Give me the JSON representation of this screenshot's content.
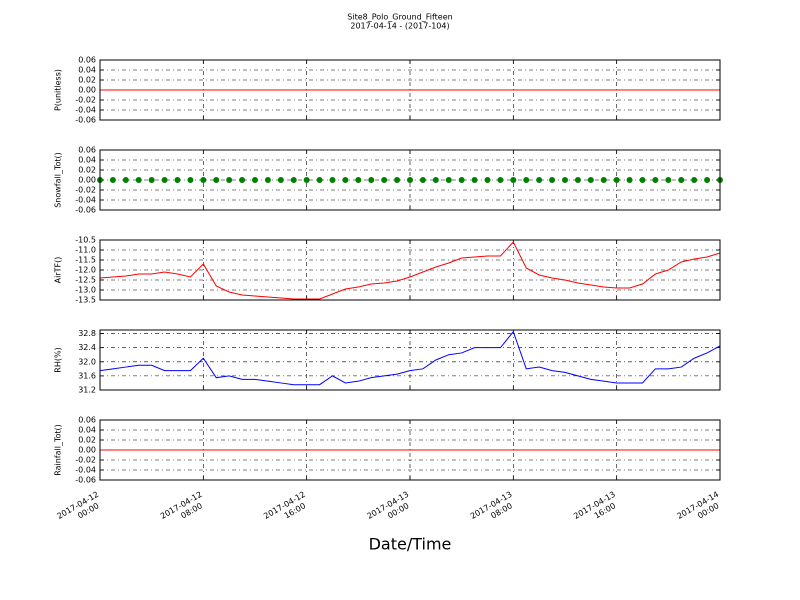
{
  "title": "Site8_Polo_Ground_Fifteen",
  "subtitle": "2017-04-14 - (2017-104)",
  "xlabel": "Date/Time",
  "x": [
    "2017-04-12 00:00",
    "2017-04-12 01:00",
    "2017-04-12 02:00",
    "2017-04-12 03:00",
    "2017-04-12 04:00",
    "2017-04-12 05:00",
    "2017-04-12 06:00",
    "2017-04-12 07:00",
    "2017-04-12 08:00",
    "2017-04-12 09:00",
    "2017-04-12 10:00",
    "2017-04-12 11:00",
    "2017-04-12 12:00",
    "2017-04-12 13:00",
    "2017-04-12 14:00",
    "2017-04-12 15:00",
    "2017-04-12 16:00",
    "2017-04-12 17:00",
    "2017-04-12 18:00",
    "2017-04-12 19:00",
    "2017-04-12 20:00",
    "2017-04-12 21:00",
    "2017-04-12 22:00",
    "2017-04-12 23:00",
    "2017-04-13 00:00",
    "2017-04-13 01:00",
    "2017-04-13 02:00",
    "2017-04-13 03:00",
    "2017-04-13 04:00",
    "2017-04-13 05:00",
    "2017-04-13 06:00",
    "2017-04-13 07:00",
    "2017-04-13 08:00",
    "2017-04-13 09:00",
    "2017-04-13 10:00",
    "2017-04-13 11:00",
    "2017-04-13 12:00",
    "2017-04-13 13:00",
    "2017-04-13 14:00",
    "2017-04-13 15:00",
    "2017-04-13 16:00",
    "2017-04-13 17:00",
    "2017-04-13 18:00",
    "2017-04-13 19:00",
    "2017-04-13 20:00",
    "2017-04-13 21:00",
    "2017-04-13 22:00",
    "2017-04-13 23:00",
    "2017-04-14 00:00"
  ],
  "xlim": [
    "2017-04-12 00:00",
    "2017-04-14 00:00"
  ],
  "xticks": [
    "2017-04-12 00:00",
    "2017-04-12 08:00",
    "2017-04-12 16:00",
    "2017-04-13 00:00",
    "2017-04-13 08:00",
    "2017-04-13 16:00",
    "2017-04-14 00:00"
  ],
  "grid": true,
  "chart_data": [
    {
      "type": "line",
      "ylabel": "P(unitless)",
      "color": "#ff0000",
      "ylim": [
        -0.06,
        0.06
      ],
      "yticks": [
        -0.06,
        -0.04,
        -0.02,
        {
          "value": 0,
          "label": "0.00"
        },
        0.02,
        0.04,
        0.06
      ],
      "values": [
        0,
        0,
        0,
        0,
        0,
        0,
        0,
        0,
        0,
        0,
        0,
        0,
        0,
        0,
        0,
        0,
        0,
        0,
        0,
        0,
        0,
        0,
        0,
        0,
        0,
        0,
        0,
        0,
        0,
        0,
        0,
        0,
        0,
        0,
        0,
        0,
        0,
        0,
        0,
        0,
        0,
        0,
        0,
        0,
        0,
        0,
        0,
        0,
        0
      ]
    },
    {
      "type": "scatter",
      "ylabel": "Snowfall_Tot()",
      "color": "#008000",
      "ylim": [
        -0.06,
        0.06
      ],
      "yticks": [
        -0.06,
        -0.04,
        -0.02,
        {
          "value": 0,
          "label": "0.00"
        },
        0.02,
        0.04,
        0.06
      ],
      "values": [
        0,
        0,
        0,
        0,
        0,
        0,
        0,
        0,
        0,
        0,
        0,
        0,
        0,
        0,
        0,
        0,
        0,
        0,
        0,
        0,
        0,
        0,
        0,
        0,
        0,
        0,
        0,
        0,
        0,
        0,
        0,
        0,
        0,
        0,
        0,
        0,
        0,
        0,
        0,
        0,
        0,
        0,
        0,
        0,
        0,
        0,
        0,
        0,
        0
      ]
    },
    {
      "type": "line",
      "ylabel": "AirTF()",
      "color": "#ff0000",
      "ylim": [
        -13.5,
        -10.5
      ],
      "yticks": [
        -13.5,
        {
          "value": -13,
          "label": "-13.0"
        },
        -12.5,
        {
          "value": -12,
          "label": "-12.0"
        },
        -11.5,
        {
          "value": -11,
          "label": "-11.0"
        },
        -10.5
      ],
      "values": [
        -12.4,
        -12.35,
        -12.3,
        -12.2,
        -12.2,
        -12.1,
        -12.2,
        -12.35,
        -11.7,
        -12.8,
        -13.1,
        -13.25,
        -13.3,
        -13.35,
        -13.4,
        -13.45,
        -13.45,
        -13.45,
        -13.2,
        -12.95,
        -12.85,
        -12.7,
        -12.65,
        -12.55,
        -12.35,
        -12.1,
        -11.85,
        -11.65,
        -11.4,
        -11.35,
        -11.3,
        -11.3,
        -10.6,
        -11.9,
        -12.25,
        -12.4,
        -12.5,
        -12.65,
        -12.75,
        -12.85,
        -12.9,
        -12.9,
        -12.7,
        -12.2,
        -12.0,
        -11.6,
        -11.45,
        -11.35,
        -11.15
      ]
    },
    {
      "type": "line",
      "ylabel": "RH(%)",
      "color": "#0000ff",
      "ylim": [
        31.2,
        32.9
      ],
      "yticks": [
        31.2,
        31.6,
        {
          "value": 32,
          "label": "32.0"
        },
        32.4,
        32.8
      ],
      "values": [
        31.75,
        31.8,
        31.85,
        31.9,
        31.9,
        31.75,
        31.75,
        31.75,
        32.1,
        31.55,
        31.6,
        31.5,
        31.5,
        31.45,
        31.4,
        31.35,
        31.35,
        31.35,
        31.6,
        31.4,
        31.45,
        31.55,
        31.6,
        31.65,
        31.75,
        31.8,
        32.05,
        32.2,
        32.25,
        32.4,
        32.4,
        32.4,
        32.85,
        31.8,
        31.85,
        31.75,
        31.7,
        31.6,
        31.5,
        31.45,
        31.4,
        31.4,
        31.4,
        31.8,
        31.8,
        31.85,
        32.1,
        32.25,
        32.45
      ]
    },
    {
      "type": "line",
      "ylabel": "Rainfall_Tot()",
      "color": "#ff0000",
      "ylim": [
        -0.06,
        0.06
      ],
      "yticks": [
        -0.06,
        -0.04,
        -0.02,
        {
          "value": 0,
          "label": "0.00"
        },
        0.02,
        0.04,
        0.06
      ],
      "values": [
        0,
        0,
        0,
        0,
        0,
        0,
        0,
        0,
        0,
        0,
        0,
        0,
        0,
        0,
        0,
        0,
        0,
        0,
        0,
        0,
        0,
        0,
        0,
        0,
        0,
        0,
        0,
        0,
        0,
        0,
        0,
        0,
        0,
        0,
        0,
        0,
        0,
        0,
        0,
        0,
        0,
        0,
        0,
        0,
        0,
        0,
        0,
        0,
        0
      ]
    }
  ]
}
